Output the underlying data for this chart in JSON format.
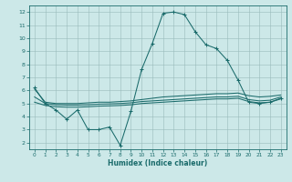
{
  "xlabel": "Humidex (Indice chaleur)",
  "xlim": [
    -0.5,
    23.5
  ],
  "ylim": [
    1.5,
    12.5
  ],
  "xticks": [
    0,
    1,
    2,
    3,
    4,
    5,
    6,
    7,
    8,
    9,
    10,
    11,
    12,
    13,
    14,
    15,
    16,
    17,
    18,
    19,
    20,
    21,
    22,
    23
  ],
  "yticks": [
    2,
    3,
    4,
    5,
    6,
    7,
    8,
    9,
    10,
    11,
    12
  ],
  "background_color": "#cce8e8",
  "grid_color": "#99bbbb",
  "line_color": "#1a6b6b",
  "line1_x": [
    0,
    1,
    2,
    3,
    4,
    5,
    6,
    7,
    8,
    9,
    10,
    11,
    12,
    13,
    14,
    15,
    16,
    17,
    18,
    19,
    20,
    21,
    22,
    23
  ],
  "line1_y": [
    6.2,
    5.0,
    4.5,
    3.8,
    4.5,
    3.0,
    3.0,
    3.2,
    1.8,
    4.4,
    7.6,
    9.6,
    11.9,
    12.0,
    11.8,
    10.5,
    9.5,
    9.2,
    8.3,
    6.8,
    5.1,
    5.0,
    5.1,
    5.4
  ],
  "line2_y": [
    6.1,
    5.1,
    5.0,
    5.0,
    5.0,
    5.05,
    5.1,
    5.1,
    5.15,
    5.2,
    5.3,
    5.4,
    5.5,
    5.55,
    5.6,
    5.65,
    5.7,
    5.75,
    5.75,
    5.8,
    5.6,
    5.5,
    5.55,
    5.65
  ],
  "line3_y": [
    5.5,
    5.0,
    4.9,
    4.88,
    4.88,
    4.9,
    4.95,
    4.97,
    5.0,
    5.05,
    5.15,
    5.2,
    5.25,
    5.3,
    5.35,
    5.4,
    5.45,
    5.5,
    5.5,
    5.55,
    5.3,
    5.2,
    5.25,
    5.5
  ],
  "line4_y": [
    5.1,
    4.85,
    4.75,
    4.72,
    4.72,
    4.75,
    4.8,
    4.82,
    4.85,
    4.9,
    5.0,
    5.05,
    5.1,
    5.15,
    5.2,
    5.25,
    5.3,
    5.35,
    5.35,
    5.4,
    5.15,
    5.05,
    5.1,
    5.35
  ]
}
